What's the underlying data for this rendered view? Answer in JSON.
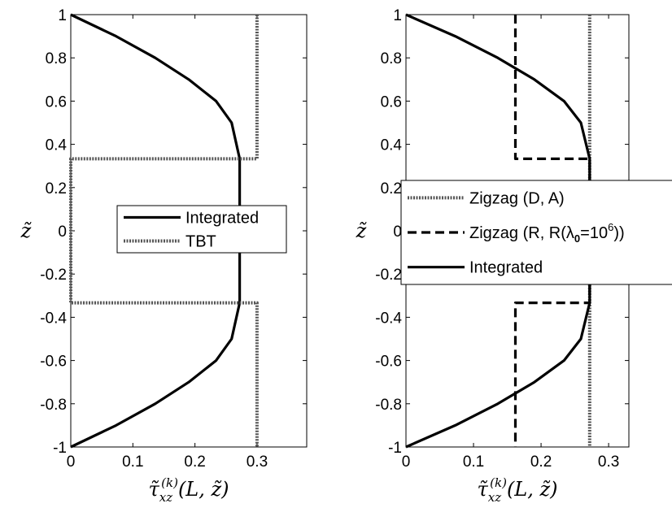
{
  "chart_data": [
    {
      "type": "line",
      "xlabel": "τ̃xz(k)(L, z̃)",
      "ylabel": "z̃",
      "xlim": [
        0,
        0.38
      ],
      "ylim": [
        -1,
        1
      ],
      "xticks": [
        0,
        0.1,
        0.2,
        0.3
      ],
      "xtick_labels": [
        "0",
        "0.1",
        "0.2",
        "0.3"
      ],
      "yticks": [
        1,
        0.8,
        0.6,
        0.4,
        0.2,
        0,
        -0.2,
        -0.4,
        -0.6,
        -0.8,
        -1
      ],
      "ytick_labels": [
        "1",
        "0.8",
        "0.6",
        "0.4",
        "0.2",
        "0",
        "-0.2",
        "-0.4",
        "-0.6",
        "-0.8",
        "-1"
      ],
      "grid": false,
      "legend_position": "right-center",
      "series": [
        {
          "name": "Integrated",
          "style": "solid",
          "color": "#000000",
          "x": [
            0,
            0.073,
            0.136,
            0.19,
            0.234,
            0.259,
            0.272,
            0.272,
            0.272,
            0.259,
            0.234,
            0.19,
            0.136,
            0.073,
            0
          ],
          "y": [
            1,
            0.9,
            0.8,
            0.7,
            0.6,
            0.5,
            0.333,
            0,
            -0.333,
            -0.5,
            -0.6,
            -0.7,
            -0.8,
            -0.9,
            -1
          ]
        },
        {
          "name": "TBT",
          "style": "dotted",
          "color": "#555555",
          "x": [
            0.3,
            0.3,
            0,
            0,
            0.3,
            0.3
          ],
          "y": [
            1,
            0.333,
            0.333,
            -0.333,
            -0.333,
            -1
          ]
        }
      ]
    },
    {
      "type": "line",
      "xlabel": "τ̃xz(k)(L, z̃)",
      "ylabel": "z̃",
      "xlim": [
        0,
        0.33
      ],
      "ylim": [
        -1,
        1
      ],
      "xticks": [
        0,
        0.1,
        0.2,
        0.3
      ],
      "xtick_labels": [
        "0",
        "0.1",
        "0.2",
        "0.3"
      ],
      "yticks": [
        1,
        0.8,
        0.6,
        0.4,
        0.2,
        0,
        -0.2,
        -0.4,
        -0.6,
        -0.8,
        -1
      ],
      "ytick_labels": [
        "1",
        "0.8",
        "0.6",
        "0.4",
        "0.2",
        "0",
        "-0.2",
        "-0.4",
        "-0.6",
        "-0.8",
        "-1"
      ],
      "grid": false,
      "legend_position": "right-center",
      "series": [
        {
          "name": "Zigzag (D, A)",
          "style": "dotted",
          "color": "#555555",
          "x": [
            0.272,
            0.272
          ],
          "y": [
            1,
            -1
          ]
        },
        {
          "name": "Zigzag (R, R(λ0=10^6))",
          "legend_parts": {
            "prefix": "Zigzag (R, R(λ",
            "sub": "0",
            "mid": "=10",
            "sup": "6",
            "suffix": "))"
          },
          "style": "dashed",
          "color": "#000000",
          "x": [
            0.162,
            0.162,
            0.272,
            0.272,
            0.162,
            0.162
          ],
          "y": [
            1,
            0.333,
            0.333,
            -0.333,
            -0.333,
            -1
          ]
        },
        {
          "name": "Integrated",
          "style": "solid",
          "color": "#000000",
          "x": [
            0,
            0.073,
            0.136,
            0.19,
            0.234,
            0.259,
            0.272,
            0.272,
            0.272,
            0.259,
            0.234,
            0.19,
            0.136,
            0.073,
            0
          ],
          "y": [
            1,
            0.9,
            0.8,
            0.7,
            0.6,
            0.5,
            0.333,
            0,
            -0.333,
            -0.5,
            -0.6,
            -0.7,
            -0.8,
            -0.9,
            -1
          ]
        }
      ]
    }
  ]
}
